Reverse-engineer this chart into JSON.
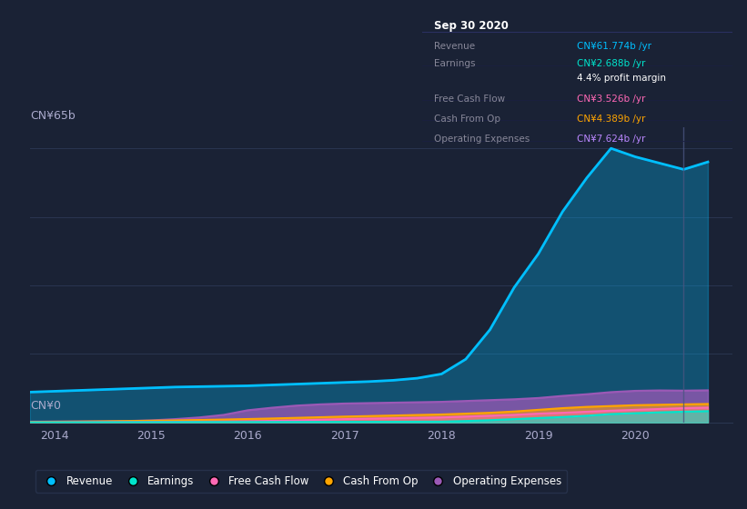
{
  "background_color": "#1a2235",
  "plot_bg_color": "#1a2235",
  "grid_color": "#2a3550",
  "title_text": "Sep 30 2020",
  "ylabel_top": "CN¥65b",
  "ylabel_bottom": "CN¥0",
  "x_ticks": [
    2014,
    2015,
    2016,
    2017,
    2018,
    2019,
    2020
  ],
  "years": [
    2013.75,
    2014.0,
    2014.25,
    2014.5,
    2014.75,
    2015.0,
    2015.25,
    2015.5,
    2015.75,
    2016.0,
    2016.25,
    2016.5,
    2016.75,
    2017.0,
    2017.25,
    2017.5,
    2017.75,
    2018.0,
    2018.25,
    2018.5,
    2018.75,
    2019.0,
    2019.25,
    2019.5,
    2019.75,
    2020.0,
    2020.25,
    2020.5,
    2020.75
  ],
  "revenue": [
    7.2,
    7.4,
    7.6,
    7.8,
    8.0,
    8.2,
    8.4,
    8.5,
    8.6,
    8.7,
    8.9,
    9.1,
    9.3,
    9.5,
    9.7,
    10.0,
    10.5,
    11.5,
    15.0,
    22.0,
    32.0,
    40.0,
    50.0,
    58.0,
    65.0,
    63.0,
    61.5,
    60.0,
    61.774
  ],
  "earnings": [
    0.04,
    0.04,
    0.05,
    0.06,
    0.07,
    0.08,
    0.09,
    0.1,
    0.1,
    0.1,
    0.11,
    0.12,
    0.13,
    0.14,
    0.15,
    0.16,
    0.18,
    0.2,
    0.35,
    0.55,
    0.8,
    1.05,
    1.3,
    1.6,
    2.0,
    2.2,
    2.4,
    2.55,
    2.688
  ],
  "free_cash_flow": [
    0.05,
    0.06,
    0.08,
    0.1,
    0.12,
    0.15,
    0.17,
    0.19,
    0.22,
    0.28,
    0.38,
    0.5,
    0.65,
    0.8,
    0.9,
    1.0,
    1.1,
    1.2,
    1.4,
    1.6,
    1.8,
    2.1,
    2.3,
    2.55,
    2.8,
    3.0,
    3.2,
    3.4,
    3.526
  ],
  "cash_from_op": [
    0.15,
    0.18,
    0.22,
    0.28,
    0.35,
    0.42,
    0.5,
    0.6,
    0.7,
    0.82,
    0.95,
    1.1,
    1.25,
    1.4,
    1.52,
    1.65,
    1.78,
    1.9,
    2.1,
    2.3,
    2.6,
    3.0,
    3.4,
    3.7,
    3.9,
    4.1,
    4.2,
    4.3,
    4.389
  ],
  "operating_expenses": [
    0.2,
    0.22,
    0.25,
    0.28,
    0.35,
    0.5,
    0.8,
    1.2,
    1.8,
    2.9,
    3.5,
    4.0,
    4.3,
    4.5,
    4.6,
    4.7,
    4.8,
    4.9,
    5.1,
    5.3,
    5.5,
    5.8,
    6.3,
    6.7,
    7.2,
    7.5,
    7.6,
    7.55,
    7.624
  ],
  "revenue_color": "#00bfff",
  "earnings_color": "#00e5cc",
  "free_cash_flow_color": "#ff69b4",
  "cash_from_op_color": "#ffa500",
  "operating_expenses_color": "#9b59b6",
  "ylim": [
    0,
    70
  ],
  "info_rows": [
    {
      "label": "Revenue",
      "value": "CN¥61.774b /yr",
      "color": "#00bfff"
    },
    {
      "label": "Earnings",
      "value": "CN¥2.688b /yr",
      "color": "#00e5cc"
    },
    {
      "label": "",
      "value": "4.4% profit margin",
      "color": "#ffffff"
    },
    {
      "label": "Free Cash Flow",
      "value": "CN¥3.526b /yr",
      "color": "#ff69b4"
    },
    {
      "label": "Cash From Op",
      "value": "CN¥4.389b /yr",
      "color": "#ffa500"
    },
    {
      "label": "Operating Expenses",
      "value": "CN¥7.624b /yr",
      "color": "#bb88ff"
    }
  ],
  "legend_items": [
    {
      "label": "Revenue",
      "color": "#00bfff"
    },
    {
      "label": "Earnings",
      "color": "#00e5cc"
    },
    {
      "label": "Free Cash Flow",
      "color": "#ff69b4"
    },
    {
      "label": "Cash From Op",
      "color": "#ffa500"
    },
    {
      "label": "Operating Expenses",
      "color": "#9b59b6"
    }
  ]
}
